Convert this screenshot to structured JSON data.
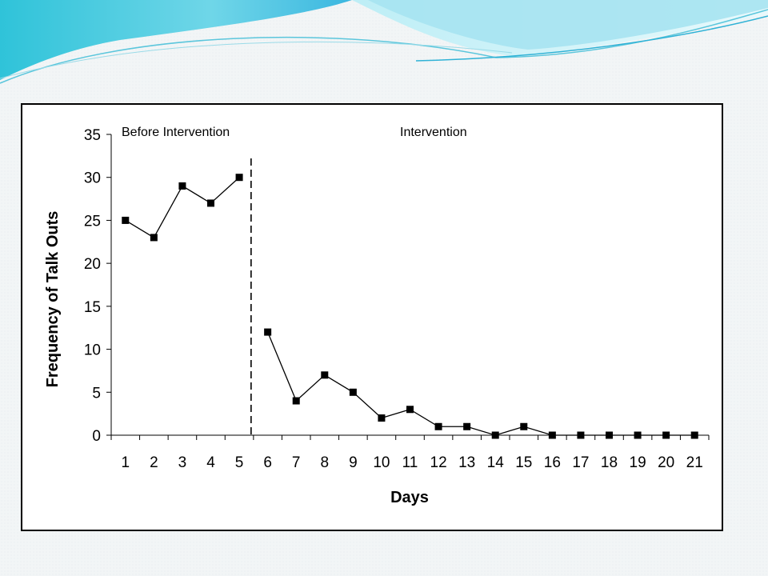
{
  "slide": {
    "accent_colors": [
      "#2fc3d9",
      "#8fe0ee",
      "#bdeef6"
    ]
  },
  "chart_data": {
    "type": "line",
    "title": "",
    "xlabel": "Days",
    "ylabel": "Frequency of Talk Outs",
    "x": [
      1,
      2,
      3,
      4,
      5,
      6,
      7,
      8,
      9,
      10,
      11,
      12,
      13,
      14,
      15,
      16,
      17,
      18,
      19,
      20,
      21
    ],
    "y_ticks": [
      0,
      5,
      10,
      15,
      20,
      25,
      30,
      35
    ],
    "ylim": [
      0,
      35
    ],
    "grid": false,
    "phases": [
      {
        "label": "Before Intervention",
        "days": [
          1,
          2,
          3,
          4,
          5
        ],
        "values": [
          25,
          23,
          29,
          27,
          30
        ]
      },
      {
        "label": "Intervention",
        "days": [
          6,
          7,
          8,
          9,
          10,
          11,
          12,
          13,
          14,
          15,
          16,
          17,
          18,
          19,
          20,
          21
        ],
        "values": [
          12,
          4,
          7,
          5,
          2,
          3,
          1,
          1,
          0,
          1,
          0,
          0,
          0,
          0,
          0,
          0
        ]
      }
    ],
    "phase_change_between_days": [
      5,
      6
    ],
    "marker": "square",
    "line_color": "#000000"
  }
}
